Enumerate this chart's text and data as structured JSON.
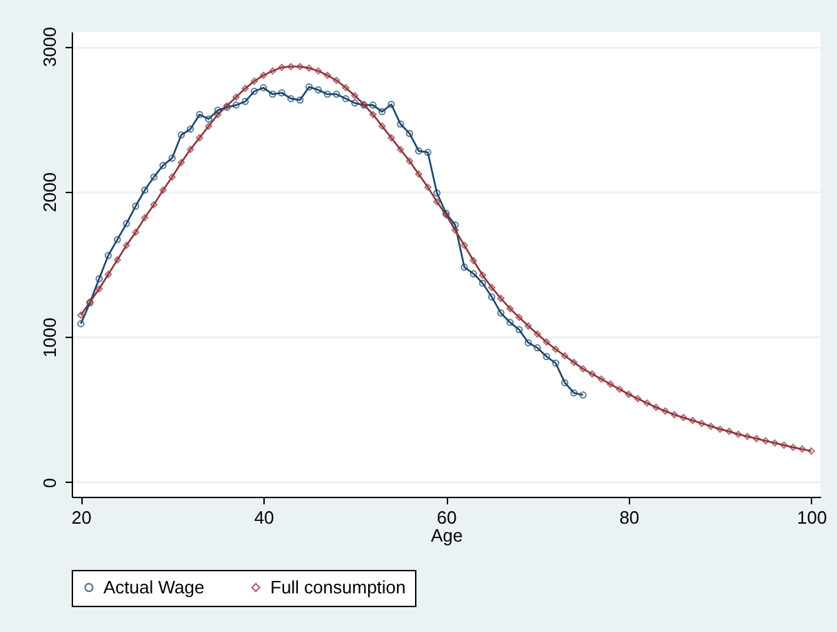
{
  "chart_data": {
    "type": "line",
    "xlabel": "Age",
    "xlim": [
      19,
      101
    ],
    "xticks": [
      20,
      40,
      60,
      80,
      100
    ],
    "ylim": [
      -100,
      3100
    ],
    "yticks": [
      0,
      1000,
      2000,
      3000
    ],
    "grid": "y",
    "legend": "bottom",
    "series": [
      {
        "name": "Actual Wage",
        "color": "#1a476f",
        "marker": "circle",
        "x": [
          20,
          21,
          22,
          23,
          24,
          25,
          26,
          27,
          28,
          29,
          30,
          31,
          32,
          33,
          34,
          35,
          36,
          37,
          38,
          39,
          40,
          41,
          42,
          43,
          44,
          45,
          46,
          47,
          48,
          49,
          50,
          51,
          52,
          53,
          54,
          55,
          56,
          57,
          58,
          59,
          60,
          61,
          62,
          63,
          64,
          65,
          66,
          67,
          68,
          69,
          70,
          71,
          72,
          73,
          74,
          75
        ],
        "values": [
          1090,
          1235,
          1400,
          1560,
          1670,
          1780,
          1900,
          2010,
          2100,
          2180,
          2230,
          2390,
          2430,
          2530,
          2500,
          2560,
          2580,
          2595,
          2620,
          2690,
          2715,
          2670,
          2680,
          2640,
          2630,
          2720,
          2700,
          2670,
          2670,
          2640,
          2610,
          2595,
          2595,
          2550,
          2600,
          2465,
          2400,
          2280,
          2270,
          1990,
          1850,
          1770,
          1480,
          1435,
          1370,
          1275,
          1165,
          1100,
          1050,
          960,
          925,
          865,
          820,
          685,
          615,
          600
        ]
      },
      {
        "name": "Full consumption",
        "color": "#90353b",
        "marker": "diamond",
        "x": [
          20,
          21,
          22,
          23,
          24,
          25,
          26,
          27,
          28,
          29,
          30,
          31,
          32,
          33,
          34,
          35,
          36,
          37,
          38,
          39,
          40,
          41,
          42,
          43,
          44,
          45,
          46,
          47,
          48,
          49,
          50,
          51,
          52,
          53,
          54,
          55,
          56,
          57,
          58,
          59,
          60,
          61,
          62,
          63,
          64,
          65,
          66,
          67,
          68,
          69,
          70,
          71,
          72,
          73,
          74,
          75,
          76,
          77,
          78,
          79,
          80,
          81,
          82,
          83,
          84,
          85,
          86,
          87,
          88,
          89,
          90,
          91,
          92,
          93,
          94,
          95,
          96,
          97,
          98,
          99,
          100
        ],
        "values": [
          1150,
          1240,
          1330,
          1430,
          1530,
          1630,
          1720,
          1820,
          1910,
          2010,
          2100,
          2200,
          2290,
          2370,
          2450,
          2530,
          2590,
          2650,
          2710,
          2760,
          2800,
          2830,
          2855,
          2860,
          2860,
          2850,
          2830,
          2800,
          2765,
          2715,
          2660,
          2600,
          2530,
          2450,
          2370,
          2290,
          2210,
          2120,
          2030,
          1930,
          1840,
          1735,
          1630,
          1525,
          1425,
          1340,
          1265,
          1195,
          1135,
          1075,
          1020,
          965,
          915,
          870,
          825,
          780,
          745,
          710,
          675,
          640,
          605,
          575,
          545,
          515,
          490,
          465,
          445,
          425,
          405,
          385,
          365,
          350,
          330,
          315,
          300,
          285,
          270,
          255,
          240,
          228,
          215
        ]
      }
    ]
  }
}
